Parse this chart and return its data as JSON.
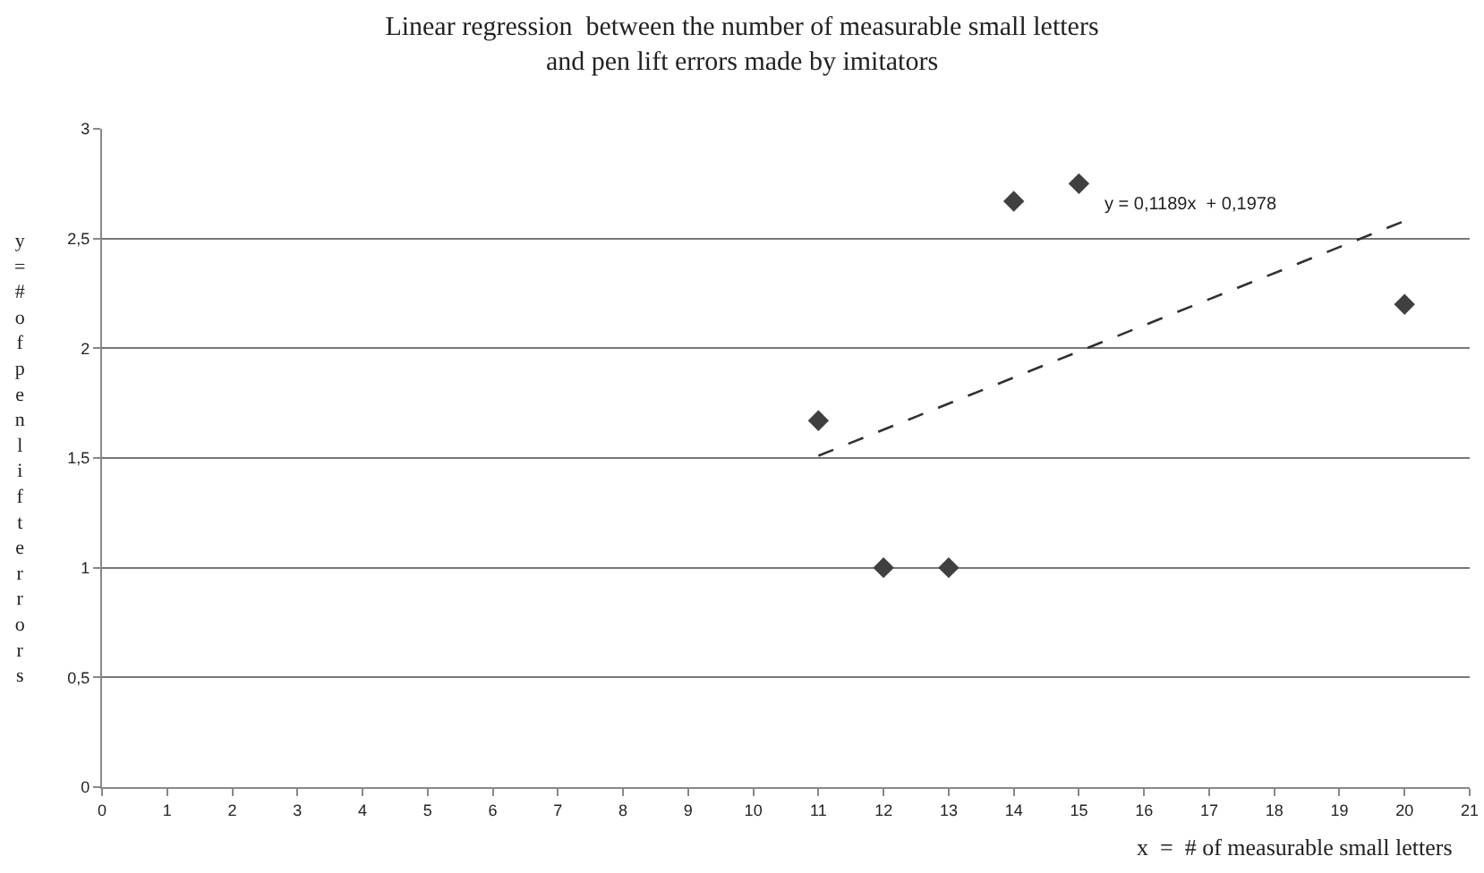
{
  "chart_data": {
    "type": "scatter",
    "title": "Linear regression  between the number of measurable small letters\nand pen lift errors made by imitators",
    "xlabel": "x  =  # of measurable small letters",
    "ylabel": "y = # of pen lift errors",
    "x": [
      11,
      12,
      13,
      14,
      15,
      20
    ],
    "series": [
      {
        "color": "#404040",
        "values": [
          1.67,
          1,
          1,
          2.67,
          2.75,
          2.2
        ],
        "marker": "diamond"
      },
      {
        "type": "line",
        "color": "#303030",
        "x": [
          11,
          20
        ],
        "values": [
          1.51,
          2.58
        ],
        "line_style": "dashed",
        "marker": "none"
      }
    ],
    "annotations": [
      "y = 0,1189x  + 0,1978"
    ],
    "xlim": [
      0,
      21
    ],
    "xticks": [
      0,
      1,
      2,
      3,
      4,
      5,
      6,
      7,
      8,
      9,
      10,
      11,
      12,
      13,
      14,
      15,
      16,
      17,
      18,
      19,
      20,
      21
    ],
    "ylim": [
      0,
      3
    ],
    "yticks": [
      0,
      {
        "value": 0.5,
        "label": "0,5"
      },
      1,
      {
        "value": 1.5,
        "label": "1,5"
      },
      2,
      {
        "value": 2.5,
        "label": "2,5"
      },
      3
    ],
    "grid": "y"
  }
}
